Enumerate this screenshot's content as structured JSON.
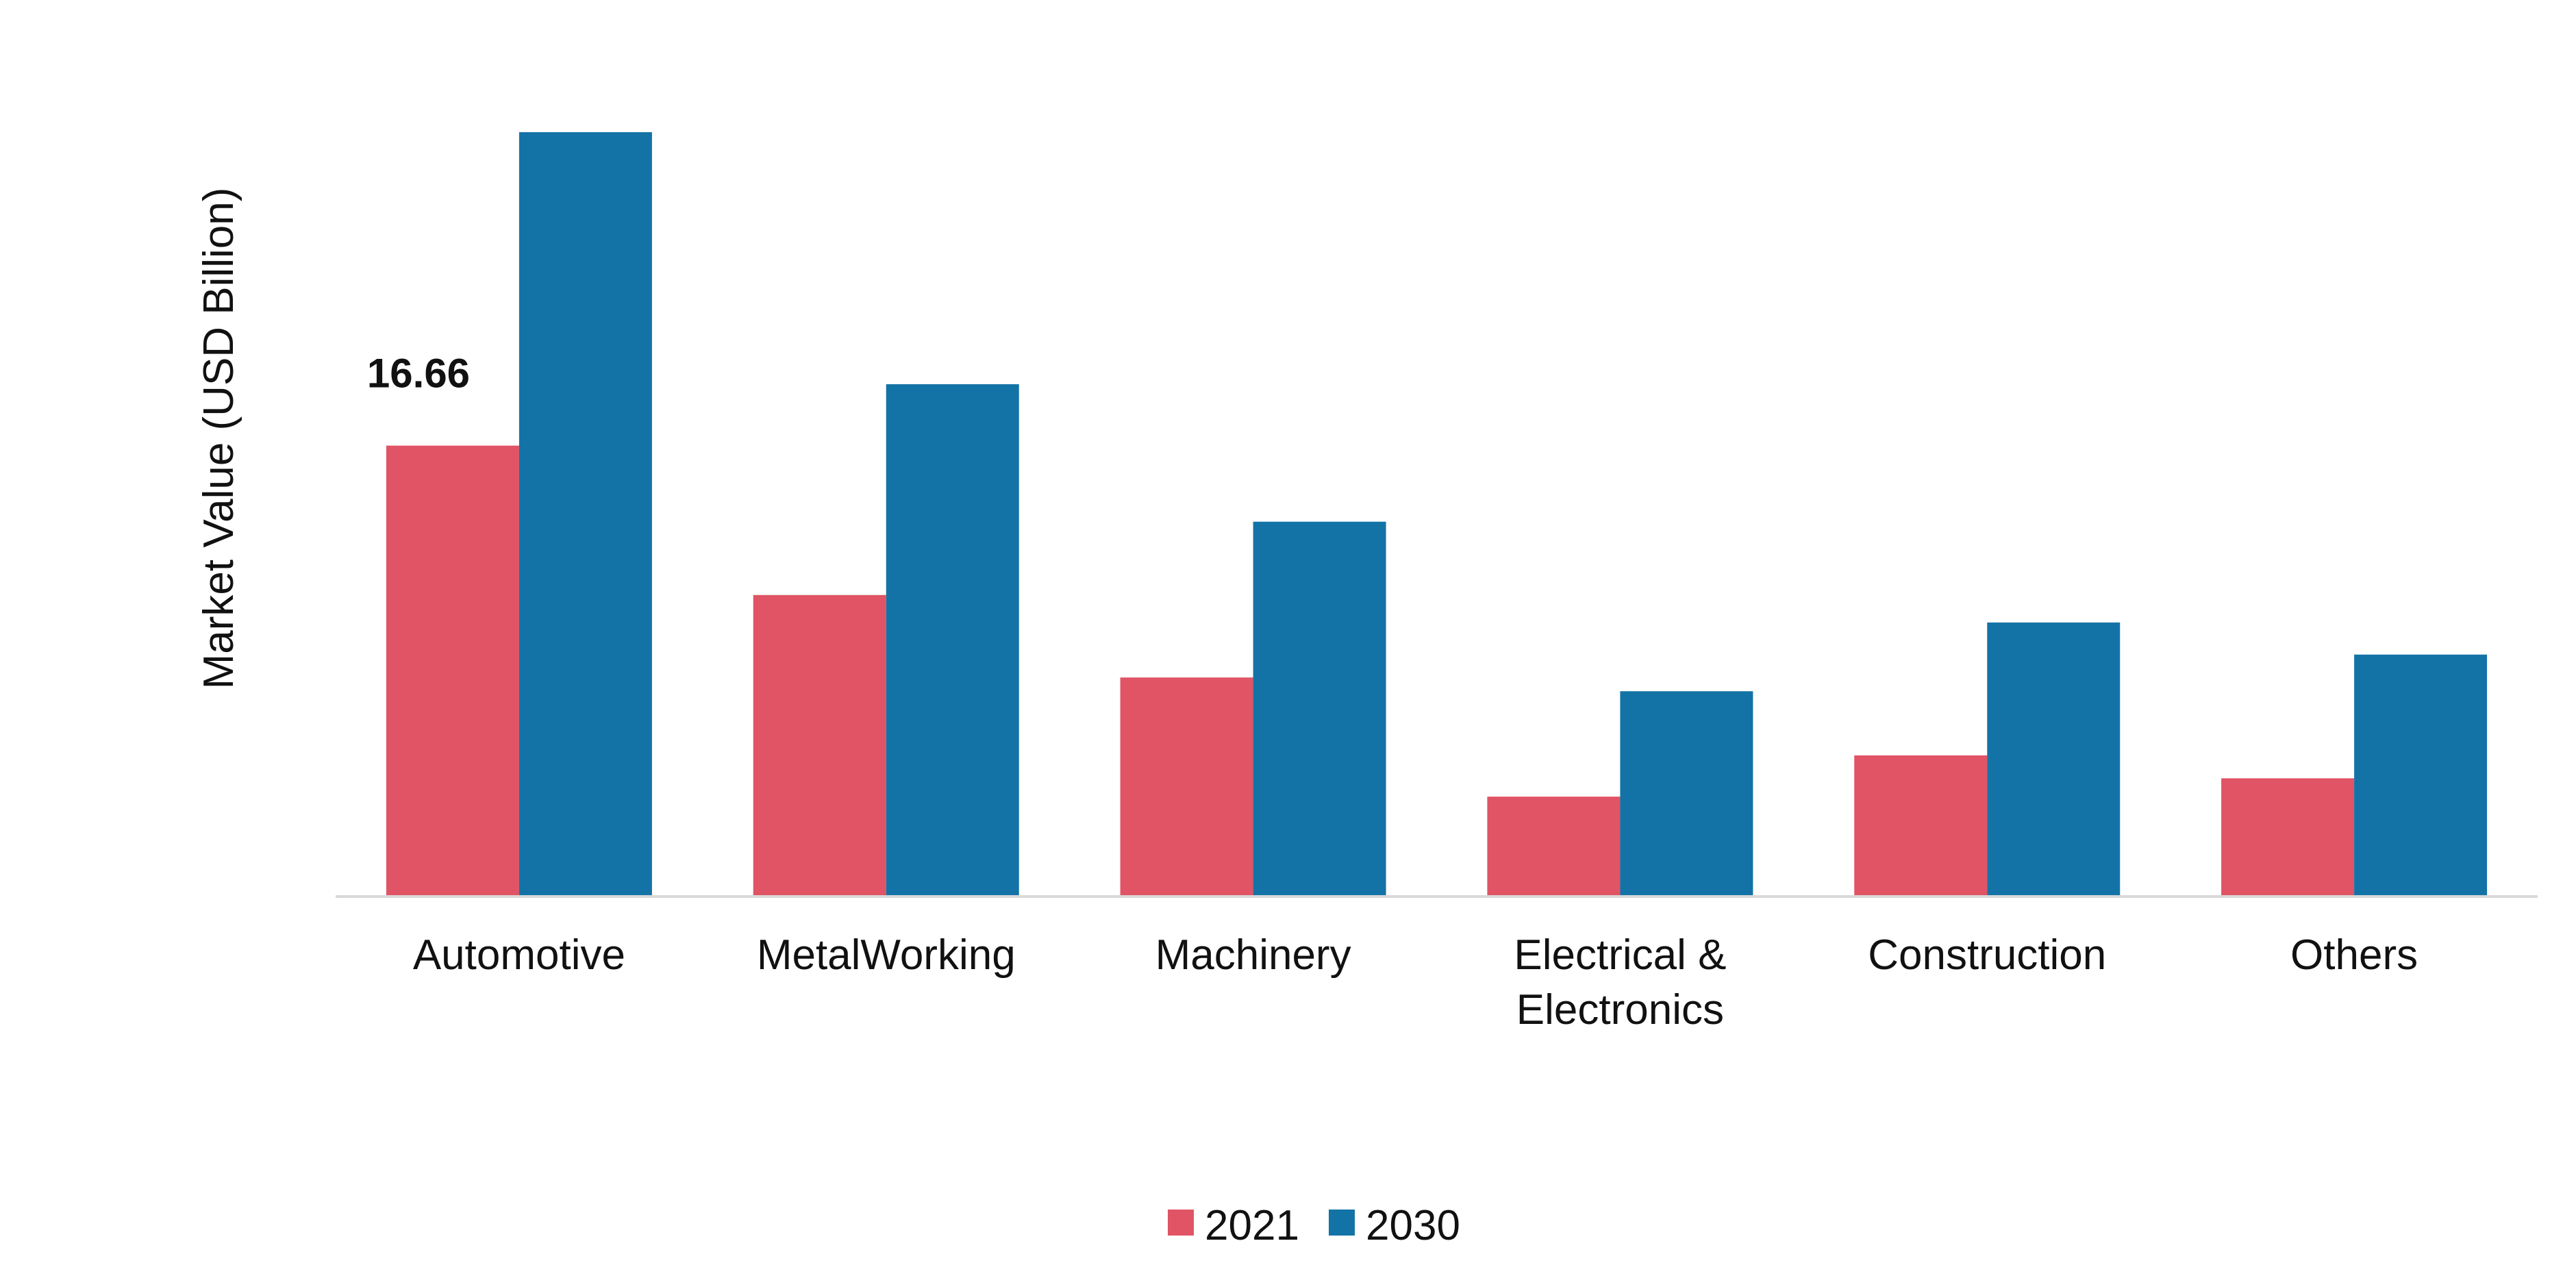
{
  "chart_data": {
    "type": "bar",
    "title": "",
    "xlabel": "",
    "ylabel": "Market Value (USD Billion)",
    "categories": [
      [
        "Automotive"
      ],
      [
        "MetalWorking"
      ],
      [
        "Machinery"
      ],
      [
        "Electrical &",
        "Electronics"
      ],
      [
        "Construction"
      ],
      [
        "Others"
      ]
    ],
    "series": [
      {
        "name": "2021",
        "color": "#e05465",
        "values": [
          16.66,
          13.4,
          11.6,
          9.0,
          9.9,
          9.4
        ]
      },
      {
        "name": "2030",
        "color": "#1473a6",
        "values": [
          23.5,
          18.0,
          15.0,
          11.3,
          12.8,
          12.1
        ]
      }
    ],
    "data_labels": [
      {
        "series": 0,
        "category": 0,
        "text": "16.66"
      }
    ],
    "ylim": [
      6.85,
      23.5
    ],
    "grid": false,
    "legend_position": "bottom-center",
    "axis_color": "#d9d9d9"
  }
}
